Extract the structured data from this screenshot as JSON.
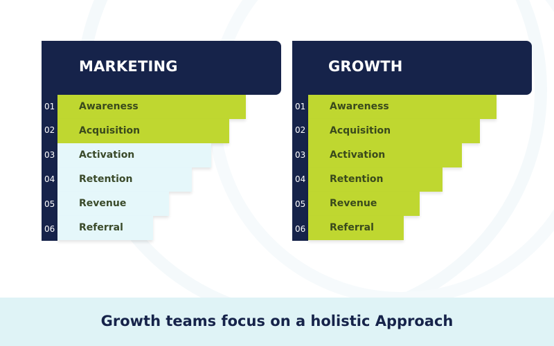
{
  "colors": {
    "navy": "#16234a",
    "lime": "#bfd730",
    "pale_cyan": "#e5f7fa",
    "footer_band": "#dff3f6"
  },
  "marketing": {
    "title": "MARKETING",
    "steps": [
      {
        "number": "01",
        "label": "Awareness",
        "style": "lime"
      },
      {
        "number": "02",
        "label": "Acquisition",
        "style": "lime"
      },
      {
        "number": "03",
        "label": "Activation",
        "style": "pale"
      },
      {
        "number": "04",
        "label": "Retention",
        "style": "pale"
      },
      {
        "number": "05",
        "label": "Revenue",
        "style": "pale"
      },
      {
        "number": "06",
        "label": "Referral",
        "style": "pale"
      }
    ]
  },
  "growth": {
    "title": "GROWTH",
    "steps": [
      {
        "number": "01",
        "label": "Awareness",
        "style": "lime"
      },
      {
        "number": "02",
        "label": "Acquisition",
        "style": "lime"
      },
      {
        "number": "03",
        "label": "Activation",
        "style": "lime"
      },
      {
        "number": "04",
        "label": "Retention",
        "style": "lime"
      },
      {
        "number": "05",
        "label": "Revenue",
        "style": "lime"
      },
      {
        "number": "06",
        "label": "Referral",
        "style": "lime"
      }
    ]
  },
  "footer": {
    "caption": "Growth teams focus on a holistic Approach"
  }
}
